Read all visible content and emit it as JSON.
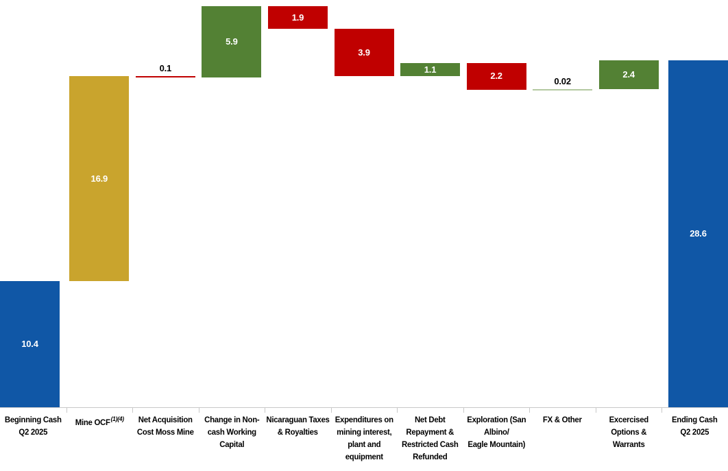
{
  "chart_data": {
    "type": "bar",
    "subtype": "waterfall",
    "title": "",
    "xlabel": "",
    "ylabel": "",
    "ylim": [
      0,
      33.6
    ],
    "grid": false,
    "legend": false,
    "colors": {
      "blue": "#1057A6",
      "gold": "#C9A42D",
      "green": "#538134",
      "red": "#C00000",
      "light_green": "#B3C8A0",
      "axis": "#C8C8C8",
      "value_inside": "#FFFFFF",
      "value_above": "#000000"
    },
    "bars": [
      {
        "label": "Beginning Cash Q2 2025",
        "lines": [
          "Beginning Cash",
          "Q2 2025"
        ],
        "superscript": "",
        "value": 10.4,
        "value_label": "10.4",
        "kind": "total",
        "color": "blue",
        "value_label_position": "inside"
      },
      {
        "label": "Mine OCF",
        "lines": [
          "Mine OCF"
        ],
        "superscript": "(1)(4)",
        "value": 16.9,
        "value_label": "16.9",
        "kind": "increase",
        "color": "gold",
        "value_label_position": "inside"
      },
      {
        "label": "Net Acquisition Cost Moss Mine",
        "lines": [
          "Net Acquisition",
          "Cost Moss Mine"
        ],
        "superscript": "",
        "value": 0.1,
        "value_label": "0.1",
        "kind": "decrease",
        "color": "red",
        "value_label_position": "above"
      },
      {
        "label": "Change in Non-cash Working Capital",
        "lines": [
          "Change in Non-",
          "cash Working",
          "Capital"
        ],
        "superscript": "",
        "value": 5.9,
        "value_label": "5.9",
        "kind": "increase",
        "color": "green",
        "value_label_position": "inside"
      },
      {
        "label": "Nicaraguan Taxes & Royalties",
        "lines": [
          "Nicaraguan Taxes",
          "& Royalties"
        ],
        "superscript": "",
        "value": 1.9,
        "value_label": "1.9",
        "kind": "decrease",
        "color": "red",
        "value_label_position": "inside"
      },
      {
        "label": "Expenditures on mining interest, plant and equipment",
        "lines": [
          "Expenditures on",
          "mining interest,",
          "plant and",
          "equipment"
        ],
        "superscript": "",
        "value": 3.9,
        "value_label": "3.9",
        "kind": "decrease",
        "color": "red",
        "value_label_position": "inside"
      },
      {
        "label": "Net Debt Repayment & Restricted Cash Refunded",
        "lines": [
          "Net Debt",
          "Repayment &",
          "Restricted Cash",
          "Refunded"
        ],
        "superscript": "",
        "value": 1.1,
        "value_label": "1.1",
        "kind": "increase",
        "color": "green",
        "value_label_position": "inside"
      },
      {
        "label": "Exploration (San Albino/ Eagle Mountain)",
        "lines": [
          "Exploration (San",
          "Albino/",
          "Eagle Mountain)"
        ],
        "superscript": "",
        "value": 2.2,
        "value_label": "2.2",
        "kind": "decrease",
        "color": "red",
        "value_label_position": "inside"
      },
      {
        "label": "FX & Other",
        "lines": [
          "FX & Other"
        ],
        "superscript": "",
        "value": 0.02,
        "value_label": "0.02",
        "kind": "increase",
        "color": "light_green",
        "value_label_position": "above"
      },
      {
        "label": "Excercised Options & Warrants",
        "lines": [
          "Excercised",
          "Options &",
          "Warrants"
        ],
        "superscript": "",
        "value": 2.4,
        "value_label": "2.4",
        "kind": "increase",
        "color": "green",
        "value_label_position": "inside"
      },
      {
        "label": "Ending Cash Q2 2025",
        "lines": [
          "Ending Cash",
          "Q2 2025"
        ],
        "superscript": "",
        "value": 28.6,
        "value_label": "28.6",
        "kind": "total",
        "color": "blue",
        "value_label_position": "inside"
      }
    ]
  }
}
